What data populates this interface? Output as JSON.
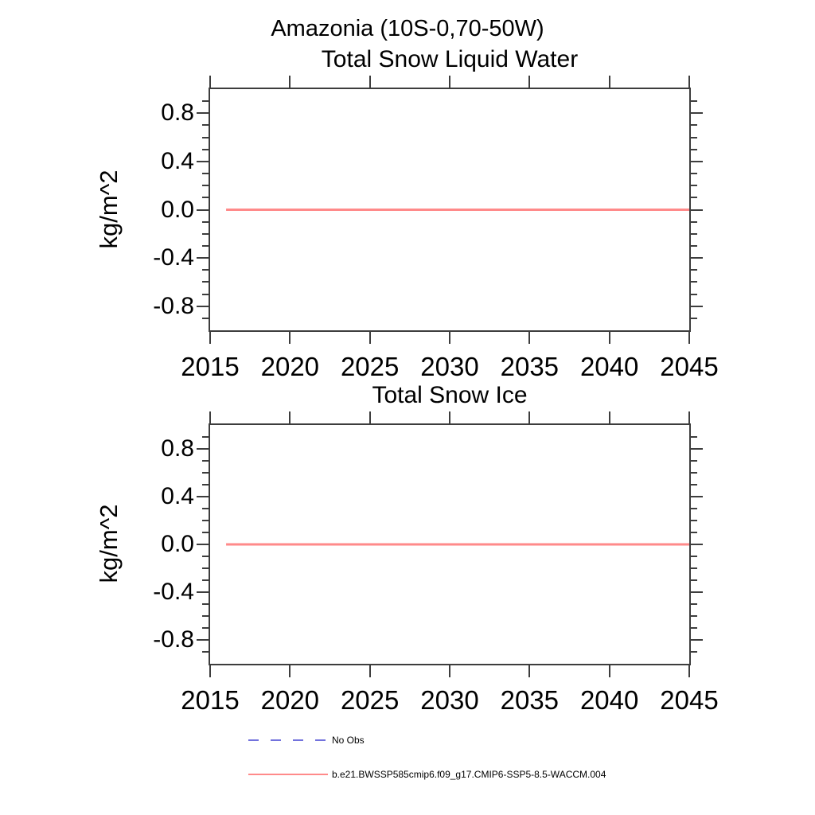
{
  "page_title": "Amazonia (10S-0,70-50W)",
  "colors": {
    "model_line": "#ff8a8a",
    "no_obs_line": "#7272dd",
    "axis": "#3d3d3d",
    "text": "#000000"
  },
  "chart_data": [
    {
      "type": "line",
      "title": "Total Snow Liquid Water",
      "xlabel": "",
      "ylabel": "kg/m^2",
      "xlim": [
        2015,
        2045
      ],
      "ylim": [
        -1.0,
        1.0
      ],
      "xticks": [
        2015,
        2020,
        2025,
        2030,
        2035,
        2040,
        2045
      ],
      "ytick_values": [
        0.8,
        0.4,
        0.0,
        -0.4,
        -0.8
      ],
      "ytick_labels": [
        "0.8",
        "0.4",
        "0.0",
        "-0.4",
        "-0.8"
      ],
      "y_minor_step": 0.1,
      "grid": false,
      "series": [
        {
          "name": "b.e21.BWSSP585cmip6.f09_g17.CMIP6-SSP5-8.5-WACCM.004",
          "color": "#ff8a8a",
          "x": [
            2016,
            2045
          ],
          "y": [
            0.0,
            0.0
          ]
        }
      ]
    },
    {
      "type": "line",
      "title": "Total Snow Ice",
      "xlabel": "",
      "ylabel": "kg/m^2",
      "xlim": [
        2015,
        2045
      ],
      "ylim": [
        -1.0,
        1.0
      ],
      "xticks": [
        2015,
        2020,
        2025,
        2030,
        2035,
        2040,
        2045
      ],
      "ytick_values": [
        0.8,
        0.4,
        0.0,
        -0.4,
        -0.8
      ],
      "ytick_labels": [
        "0.8",
        "0.4",
        "0.0",
        "-0.4",
        "-0.8"
      ],
      "y_minor_step": 0.1,
      "grid": false,
      "series": [
        {
          "name": "b.e21.BWSSP585cmip6.f09_g17.CMIP6-SSP5-8.5-WACCM.004",
          "color": "#ff8a8a",
          "x": [
            2016,
            2045
          ],
          "y": [
            0.0,
            0.0
          ]
        }
      ]
    }
  ],
  "legend": {
    "position": "bottom-left",
    "items": [
      {
        "label": "No Obs",
        "style": "dashed",
        "color": "#7272dd"
      },
      {
        "label": "b.e21.BWSSP585cmip6.f09_g17.CMIP6-SSP5-8.5-WACCM.004",
        "style": "solid",
        "color": "#ff8a8a"
      }
    ]
  }
}
